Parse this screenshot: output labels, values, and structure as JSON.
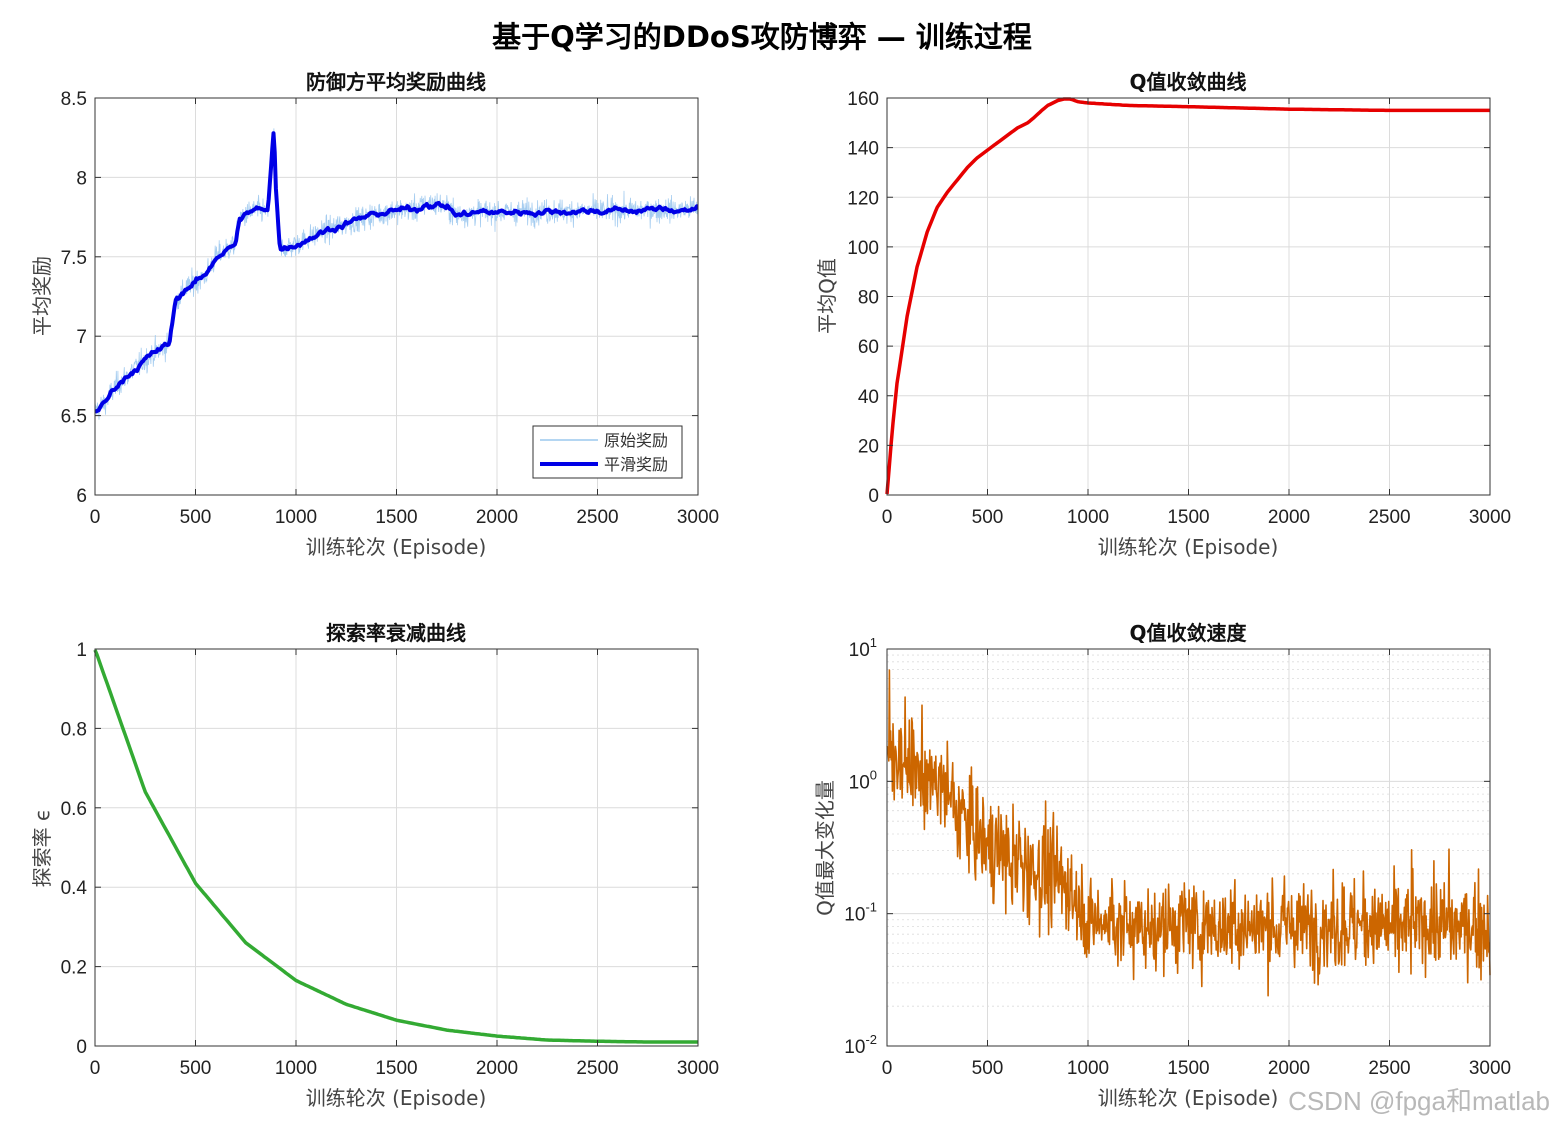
{
  "suptitle": "基于Q学习的DDoS攻防博弈 — 训练过程",
  "watermark": "CSDN @fpga和matlab",
  "colors": {
    "reward_raw": "#9cc8ee",
    "reward_smooth": "#0000e6",
    "q_curve": "#e60000",
    "epsilon": "#33aa33",
    "delta": "#cc6600",
    "grid": "#dcdcdc",
    "axis": "#333333"
  },
  "chart_data": [
    {
      "id": "reward",
      "type": "line",
      "title": "防御方平均奖励曲线",
      "xlabel": "训练轮次 (Episode)",
      "ylabel": "平均奖励",
      "xlim": [
        0,
        3000
      ],
      "ylim": [
        6,
        8.5
      ],
      "xticks": [
        0,
        500,
        1000,
        1500,
        2000,
        2500,
        3000
      ],
      "xtick_labels": [
        "0",
        "500",
        "1000",
        "1500",
        "2000",
        "2500",
        "3000"
      ],
      "yticks": [
        6,
        6.5,
        7,
        7.5,
        8,
        8.5
      ],
      "ytick_labels": [
        "6",
        "6.5",
        "7",
        "7.5",
        "8",
        "8.5"
      ],
      "grid": true,
      "legend": {
        "position": "bottom-right",
        "entries": [
          "原始奖励",
          "平滑奖励"
        ]
      },
      "series": [
        {
          "name": "原始奖励",
          "noise": 0.12,
          "x": [
            0,
            50,
            100,
            200,
            300,
            370,
            400,
            450,
            550,
            600,
            700,
            720,
            800,
            860,
            880,
            890,
            900,
            920,
            1000,
            1100,
            1200,
            1300,
            1400,
            1500,
            1600,
            1650,
            1700,
            1750,
            1800,
            1900,
            2000,
            2500,
            3000
          ],
          "y": [
            6.53,
            6.58,
            6.68,
            6.8,
            6.9,
            6.95,
            7.22,
            7.3,
            7.38,
            7.5,
            7.58,
            7.74,
            7.8,
            7.78,
            8.15,
            8.32,
            7.95,
            7.55,
            7.58,
            7.64,
            7.69,
            7.73,
            7.77,
            7.79,
            7.8,
            7.84,
            7.83,
            7.82,
            7.76,
            7.78,
            7.78,
            7.79,
            7.8
          ]
        },
        {
          "name": "平滑奖励",
          "noise": 0.025,
          "x": [
            0,
            50,
            100,
            200,
            300,
            370,
            400,
            450,
            550,
            600,
            700,
            720,
            800,
            860,
            880,
            890,
            900,
            920,
            1000,
            1100,
            1200,
            1300,
            1400,
            1500,
            1600,
            1650,
            1700,
            1750,
            1800,
            1900,
            2000,
            2500,
            3000
          ],
          "y": [
            6.53,
            6.58,
            6.68,
            6.8,
            6.9,
            6.95,
            7.22,
            7.3,
            7.38,
            7.5,
            7.58,
            7.74,
            7.8,
            7.78,
            8.15,
            8.32,
            7.95,
            7.55,
            7.58,
            7.64,
            7.69,
            7.73,
            7.77,
            7.79,
            7.8,
            7.84,
            7.83,
            7.82,
            7.76,
            7.78,
            7.78,
            7.79,
            7.8
          ]
        }
      ]
    },
    {
      "id": "qvalue",
      "type": "line",
      "title": "Q值收敛曲线",
      "xlabel": "训练轮次 (Episode)",
      "ylabel": "平均Q值",
      "xlim": [
        0,
        3000
      ],
      "ylim": [
        0,
        160
      ],
      "xticks": [
        0,
        500,
        1000,
        1500,
        2000,
        2500,
        3000
      ],
      "xtick_labels": [
        "0",
        "500",
        "1000",
        "1500",
        "2000",
        "2500",
        "3000"
      ],
      "yticks": [
        0,
        20,
        40,
        60,
        80,
        100,
        120,
        140,
        160
      ],
      "ytick_labels": [
        "0",
        "20",
        "40",
        "60",
        "80",
        "100",
        "120",
        "140",
        "160"
      ],
      "grid": true,
      "series": [
        {
          "name": "平均Q值",
          "x": [
            0,
            25,
            50,
            100,
            150,
            200,
            250,
            300,
            350,
            400,
            450,
            500,
            550,
            600,
            650,
            700,
            730,
            770,
            800,
            850,
            900,
            950,
            1000,
            1200,
            1500,
            2000,
            2500,
            3000
          ],
          "y": [
            0,
            25,
            45,
            72,
            92,
            106,
            116,
            122,
            127,
            132,
            136,
            139,
            142,
            145,
            148,
            150,
            152,
            155,
            157,
            159,
            160,
            158.5,
            158,
            157,
            156.5,
            155.5,
            155,
            155
          ]
        }
      ]
    },
    {
      "id": "epsilon",
      "type": "line",
      "title": "探索率衰减曲线",
      "xlabel": "训练轮次 (Episode)",
      "ylabel": "探索率 ϵ",
      "xlim": [
        0,
        3000
      ],
      "ylim": [
        0,
        1
      ],
      "xticks": [
        0,
        500,
        1000,
        1500,
        2000,
        2500,
        3000
      ],
      "xtick_labels": [
        "0",
        "500",
        "1000",
        "1500",
        "2000",
        "2500",
        "3000"
      ],
      "yticks": [
        0,
        0.2,
        0.4,
        0.6,
        0.8,
        1
      ],
      "ytick_labels": [
        "0",
        "0.2",
        "0.4",
        "0.6",
        "0.8",
        "1"
      ],
      "grid": true,
      "series": [
        {
          "name": "探索率",
          "x": [
            0,
            250,
            500,
            750,
            1000,
            1250,
            1500,
            1750,
            2000,
            2250,
            2500,
            2750,
            3000
          ],
          "y": [
            1.0,
            0.64,
            0.41,
            0.26,
            0.165,
            0.105,
            0.065,
            0.04,
            0.025,
            0.015,
            0.012,
            0.01,
            0.01
          ]
        }
      ]
    },
    {
      "id": "qdelta",
      "type": "line",
      "title": "Q值收敛速度",
      "xlabel": "训练轮次 (Episode)",
      "ylabel": "Q值最大变化量",
      "xlim": [
        0,
        3000
      ],
      "ylim": [
        0.01,
        10
      ],
      "yscale": "log",
      "xticks": [
        0,
        500,
        1000,
        1500,
        2000,
        2500,
        3000
      ],
      "xtick_labels": [
        "0",
        "500",
        "1000",
        "1500",
        "2000",
        "2500",
        "3000"
      ],
      "yticks": [
        0.01,
        0.1,
        1,
        10
      ],
      "ytick_labels": [
        {
          "base": "10",
          "exp": "-2"
        },
        {
          "base": "10",
          "exp": "-1"
        },
        {
          "base": "10",
          "exp": "0"
        },
        {
          "base": "10",
          "exp": "1"
        }
      ],
      "grid": true,
      "series": [
        {
          "name": "Q值最大变化量",
          "x": [
            0,
            100,
            200,
            300,
            400,
            500,
            600,
            700,
            800,
            900,
            950,
            1000,
            1200,
            1500,
            2000,
            2500,
            3000
          ],
          "y": [
            1.7,
            1.4,
            1.1,
            0.75,
            0.5,
            0.33,
            0.25,
            0.22,
            0.2,
            0.17,
            0.13,
            0.09,
            0.08,
            0.08,
            0.08,
            0.08,
            0.08
          ]
        }
      ]
    }
  ]
}
